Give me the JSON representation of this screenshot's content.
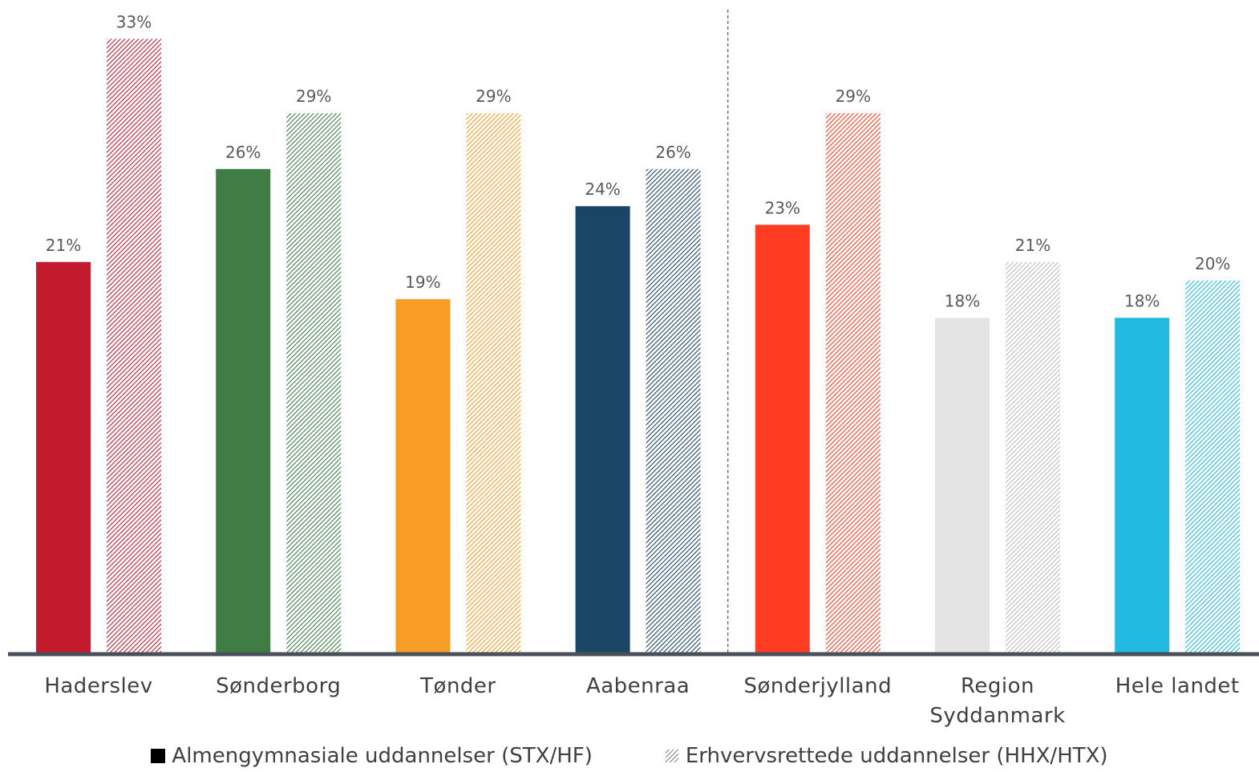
{
  "chart_data": {
    "type": "bar",
    "categories": [
      "Haderslev",
      "Sønderborg",
      "Tønder",
      "Aabenraa",
      "Sønderjylland",
      "Region Syddanmark",
      "Hele landet"
    ],
    "category_lines": [
      [
        "Haderslev"
      ],
      [
        "Sønderborg"
      ],
      [
        "Tønder"
      ],
      [
        "Aabenraa"
      ],
      [
        "Sønderjylland"
      ],
      [
        "Region",
        "Syddanmark"
      ],
      [
        "Hele landet"
      ]
    ],
    "series": [
      {
        "name": "Almengymnasiale uddannelser (STX/HF)",
        "style": "solid",
        "values": [
          21,
          26,
          19,
          24,
          23,
          18,
          18
        ],
        "labels": [
          "21%",
          "26%",
          "19%",
          "24%",
          "23%",
          "18%",
          "18%"
        ]
      },
      {
        "name": "Erhvervsrettede uddannelser (HHX/HTX)",
        "style": "hatched",
        "values": [
          33,
          29,
          29,
          26,
          29,
          21,
          20
        ],
        "labels": [
          "33%",
          "29%",
          "29%",
          "26%",
          "29%",
          "21%",
          "20%"
        ]
      }
    ],
    "category_colors": [
      "#c41a2e",
      "#3f7d45",
      "#f79c25",
      "#1b4565",
      "#ff3c22",
      "#e4e4e4",
      "#22b9e0"
    ],
    "ylim": [
      0,
      35
    ],
    "grid": false,
    "legend_position": "bottom",
    "divider_after_category": "Aabenraa"
  },
  "legend": {
    "solid_label": "Almengymnasiale uddannelser (STX/HF)",
    "hatched_label": "Erhvervsrettede uddannelser (HHX/HTX)"
  }
}
